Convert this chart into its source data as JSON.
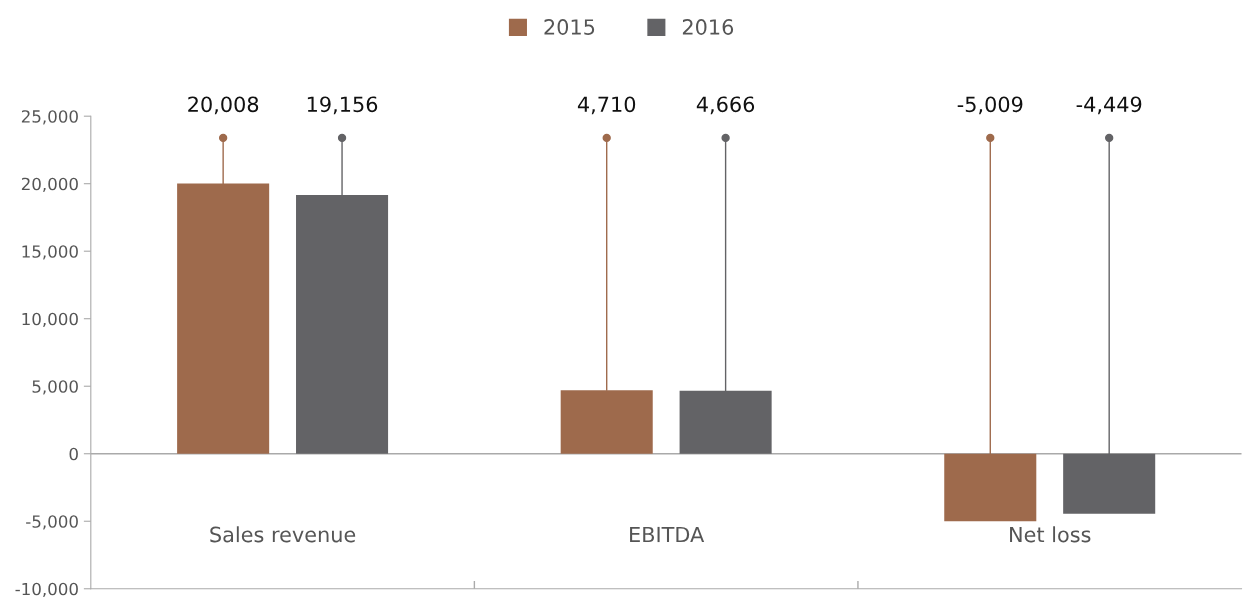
{
  "chart_data": {
    "type": "bar",
    "categories": [
      "Sales revenue",
      "EBITDA",
      "Net loss"
    ],
    "series": [
      {
        "name": "2015",
        "color": "#9e6a4c",
        "values": [
          20008,
          4710,
          -5009
        ]
      },
      {
        "name": "2016",
        "color": "#636366",
        "values": [
          19156,
          4666,
          -4449
        ]
      }
    ],
    "ylim": [
      -10000,
      25000
    ],
    "yticks": [
      {
        "value": -10000,
        "label": "-10,000"
      },
      {
        "value": -5000,
        "label": "-5,000"
      },
      0,
      {
        "value": 5000,
        "label": "5,000"
      },
      {
        "value": 10000,
        "label": "10,000"
      },
      {
        "value": 15000,
        "label": "15,000"
      },
      {
        "value": 20000,
        "label": "20,000"
      },
      {
        "value": 25000,
        "label": "25,000"
      }
    ],
    "value_labels": [
      [
        "20,008",
        "4,710",
        "-5,009"
      ],
      [
        "19,156",
        "4,666",
        "-4,449"
      ]
    ],
    "ref_lines": [
      {
        "axis": "y",
        "value": 0,
        "color": "#aaaaaa"
      }
    ],
    "grid": false,
    "legend": "top"
  }
}
